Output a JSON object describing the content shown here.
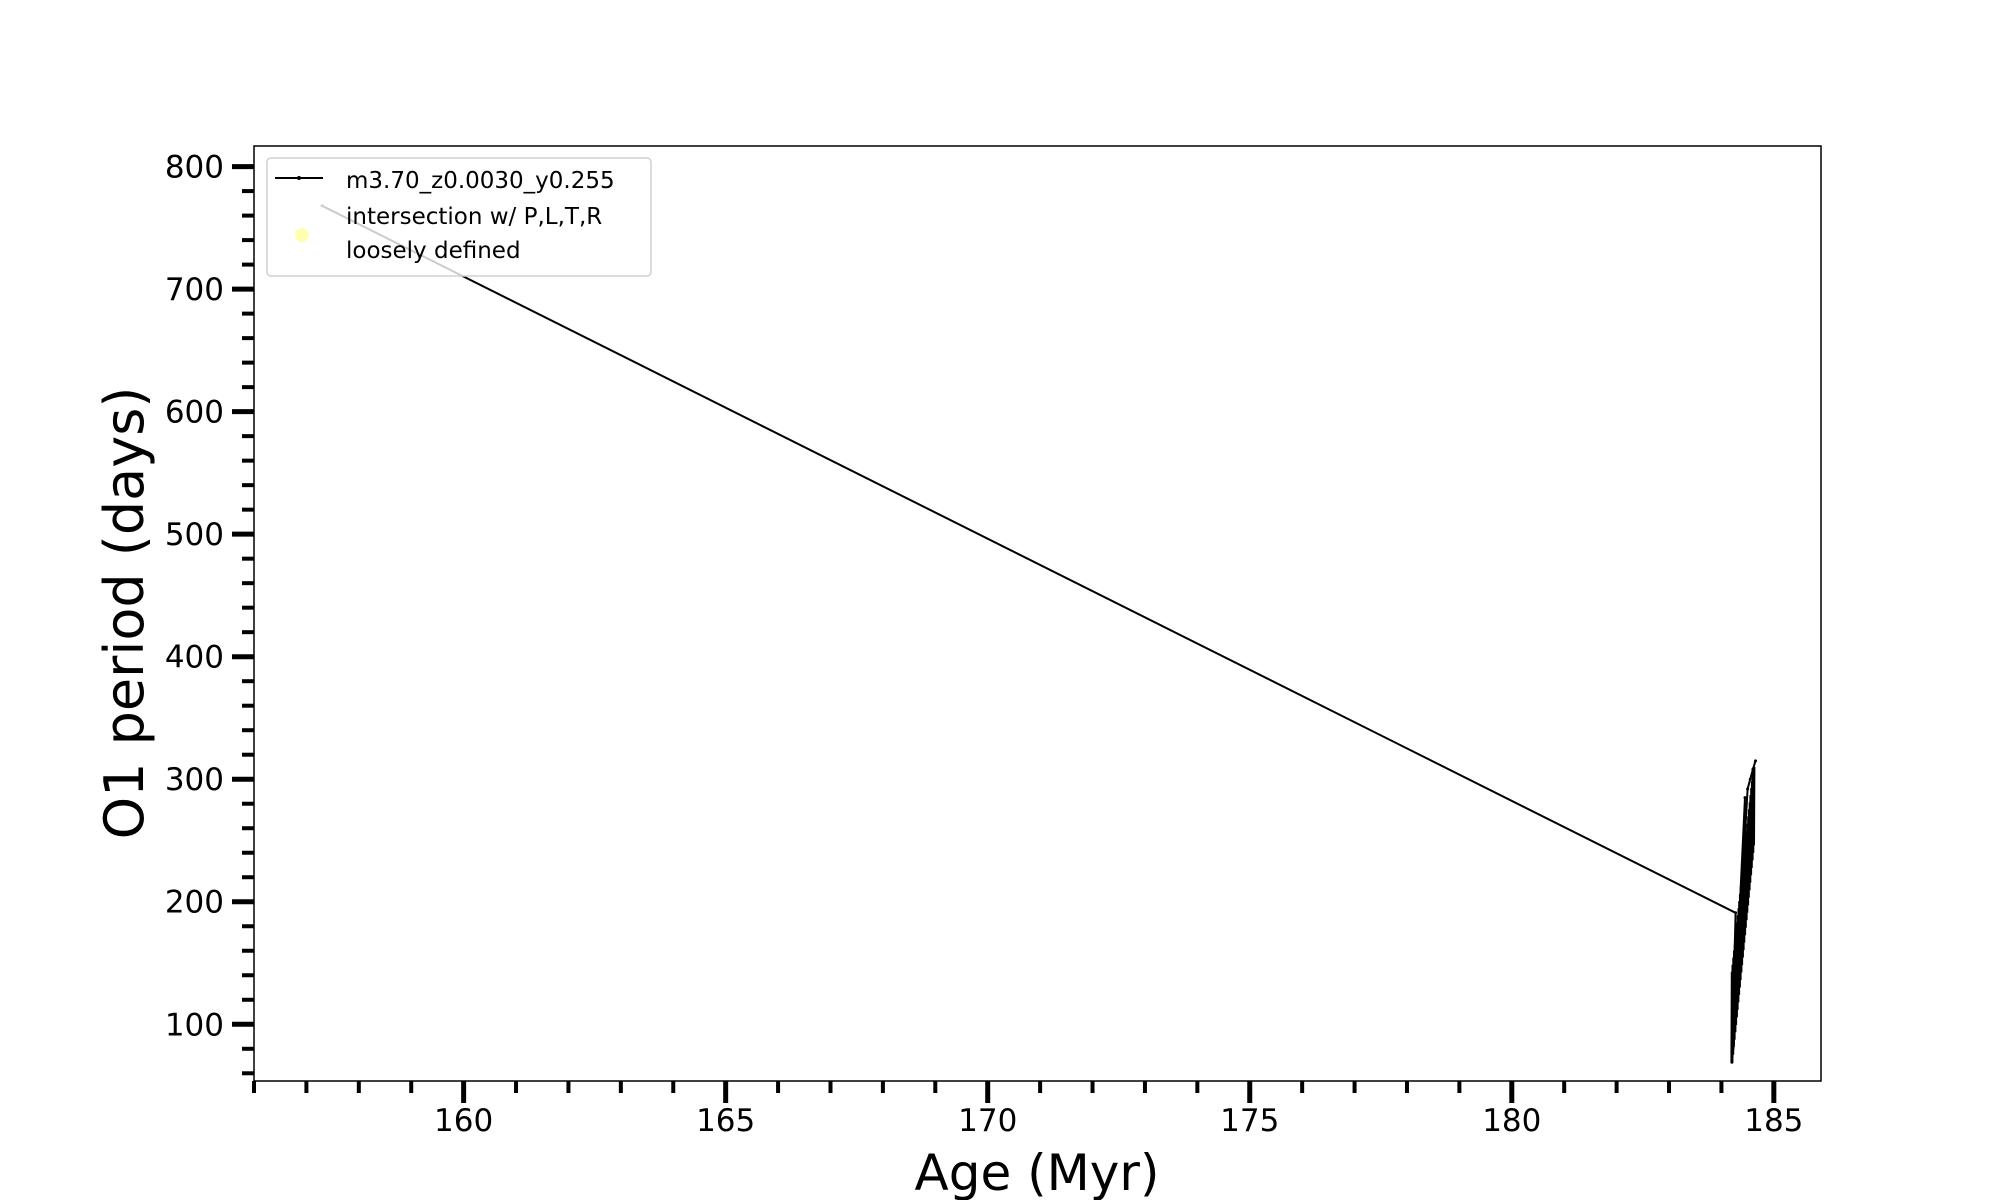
{
  "chart_data": {
    "type": "line",
    "title": "",
    "xlabel": "Age (Myr)",
    "ylabel": "O1 period (days)",
    "xlim": [
      156.0,
      185.9
    ],
    "ylim": [
      53.7,
      816.8
    ],
    "xticks": [
      160,
      165,
      170,
      175,
      180,
      185
    ],
    "yticks": [
      100,
      200,
      300,
      400,
      500,
      600,
      700,
      800
    ],
    "grid": false,
    "legend_placement": "top-left",
    "series": [
      {
        "name": "m3.70_z0.0030_y0.255",
        "color": "#000000",
        "points": [
          [
            157.3,
            768
          ],
          [
            184.27,
            191
          ],
          [
            184.2,
            69
          ],
          [
            184.35,
            140
          ],
          [
            184.22,
            80
          ],
          [
            184.38,
            160
          ],
          [
            184.24,
            100
          ],
          [
            184.4,
            200
          ],
          [
            184.26,
            120
          ],
          [
            184.42,
            240
          ],
          [
            184.3,
            150
          ],
          [
            184.45,
            285
          ],
          [
            184.35,
            180
          ],
          [
            184.5,
            292
          ],
          [
            184.55,
            300
          ],
          [
            184.6,
            308
          ],
          [
            184.65,
            315
          ]
        ]
      }
    ],
    "legend": [
      {
        "label": "m3.70_z0.0030_y0.255",
        "marker": "line",
        "color": "#000000"
      },
      {
        "label_line1": "intersection w/ P,L,T,R",
        "label_line2": "loosely defined",
        "marker": "circle",
        "color": "#ffffb0"
      }
    ]
  }
}
